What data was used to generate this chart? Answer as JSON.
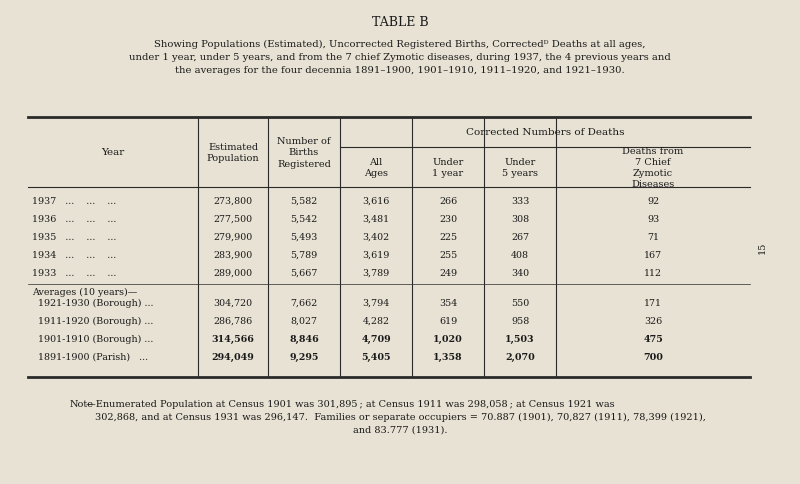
{
  "title": "TABLE B",
  "subtitle_lines": [
    "Showing Populations (Estimated), Uncorrected Registered Births, Correctedᴰ Deaths at all ages,",
    "under 1 year, under 5 years, and from the 7 chief Zymotic diseases, during 1937, the 4 previous years and",
    "the averages for the four decennia 1891–1900, 1901–1910, 1911–1920, and 1921–1930."
  ],
  "span_header": "Corrected Numbers of Deaths",
  "rows": [
    [
      "1937   ...    ...    ...",
      "273,800",
      "5,582",
      "3,616",
      "266",
      "333",
      "92"
    ],
    [
      "1936   ...    ...    ...",
      "277,500",
      "5,542",
      "3,481",
      "230",
      "308",
      "93"
    ],
    [
      "1935   ...    ...    ...",
      "279,900",
      "5,493",
      "3,402",
      "225",
      "267",
      "71"
    ],
    [
      "1934   ...    ...    ...",
      "283,900",
      "5,789",
      "3,619",
      "255",
      "408",
      "167"
    ],
    [
      "1933   ...    ...    ...",
      "289,000",
      "5,667",
      "3,789",
      "249",
      "340",
      "112"
    ]
  ],
  "avg_label": "Averages (10 years)—",
  "avg_rows": [
    [
      "  1921-1930 (Borough) ...",
      "304,720",
      "7,662",
      "3,794",
      "354",
      "550",
      "171"
    ],
    [
      "  1911-1920 (Borough) ...",
      "286,786",
      "8,027",
      "4,282",
      "619",
      "958",
      "326"
    ],
    [
      "  1901-1910 (Borough) ...",
      "314,566",
      "8,846",
      "4,709",
      "1,020",
      "1,503",
      "475"
    ],
    [
      "  1891-1900 (Parish)   ...",
      "294,049",
      "9,295",
      "5,405",
      "1,358",
      "2,070",
      "700"
    ]
  ],
  "note_left": "Note",
  "note_body": "—Enumerated Population at Census 1901 was 301,895 ; at Census 1911 was 298,058 ; at Census 1921 was\n302,868, and at Census 1931 was 296,147.  Families or separate occupiers = 70.887 (1901), 70,827 (1911), 78,399 (1921),\nand 83.777 (1931).",
  "bg_color": "#e8e2d4",
  "line_color": "#2a2a2a",
  "text_color": "#1a1a1a",
  "page_num": "15"
}
